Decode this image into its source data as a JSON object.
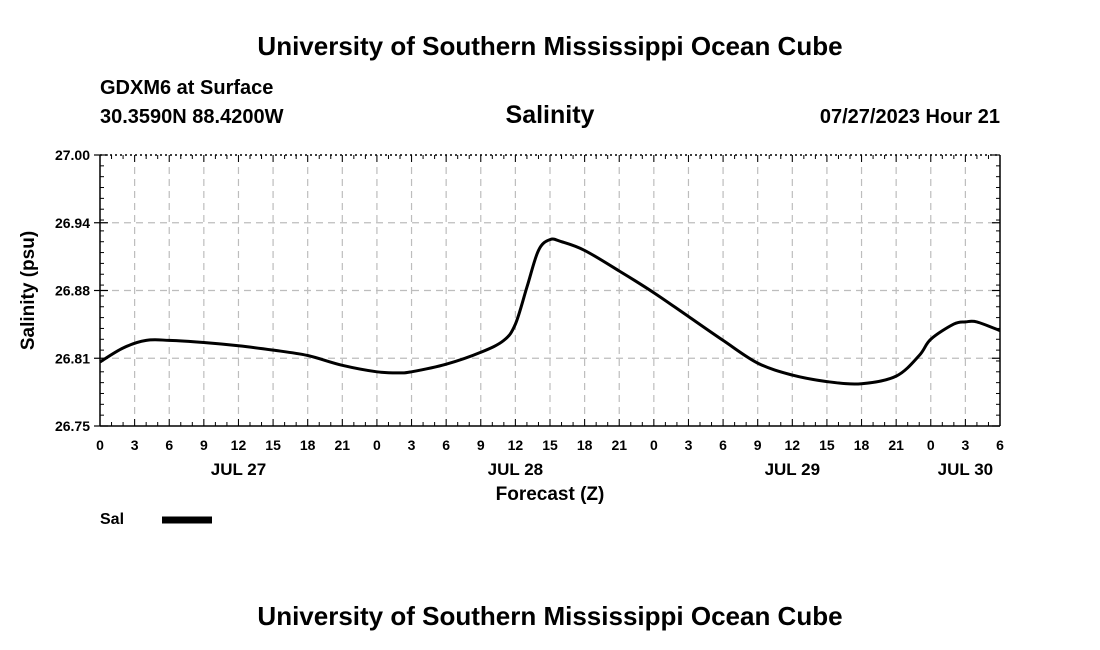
{
  "header": {
    "title": "University of Southern Mississippi Ocean Cube",
    "station": "GDXM6 at Surface",
    "coords": "30.3590N  88.4200W",
    "datetime": "07/27/2023 Hour 21"
  },
  "footer": {
    "title": "University of Southern Mississippi Ocean Cube"
  },
  "chart_data": {
    "type": "line",
    "title": "Salinity",
    "xlabel": "Forecast (Z)",
    "ylabel": "Salinity (psu)",
    "ylim": [
      26.75,
      27.0
    ],
    "yticks": [
      "26.75",
      "26.81",
      "26.88",
      "26.94",
      "27.00"
    ],
    "xlim_hours": [
      0,
      78
    ],
    "xtick_labels": [
      "0",
      "3",
      "6",
      "9",
      "12",
      "15",
      "18",
      "21",
      "0",
      "3",
      "6",
      "9",
      "12",
      "15",
      "18",
      "21",
      "0",
      "3",
      "6",
      "9",
      "12",
      "15",
      "18",
      "21",
      "0",
      "3",
      "6"
    ],
    "day_labels": [
      {
        "label": "JUL 27",
        "hour": 12
      },
      {
        "label": "JUL 28",
        "hour": 36
      },
      {
        "label": "JUL 29",
        "hour": 60
      },
      {
        "label": "JUL 30",
        "hour": 75
      }
    ],
    "grid": true,
    "legend": {
      "position": "bottom-left",
      "entries": [
        "Sal"
      ]
    },
    "series": [
      {
        "name": "Sal",
        "color": "#000000",
        "x": [
          0,
          2,
          4,
          6,
          9,
          12,
          15,
          18,
          21,
          24,
          26,
          27,
          30,
          33,
          35,
          36,
          37,
          38,
          39,
          40,
          42,
          45,
          48,
          51,
          54,
          57,
          60,
          63,
          66,
          69,
          71,
          72,
          74,
          75,
          76,
          78
        ],
        "values": [
          26.809,
          26.822,
          26.829,
          26.829,
          26.827,
          26.824,
          26.82,
          26.815,
          26.806,
          26.8,
          26.799,
          26.8,
          26.807,
          26.818,
          26.829,
          26.844,
          26.878,
          26.912,
          26.922,
          26.92,
          26.912,
          26.893,
          26.873,
          26.851,
          26.829,
          26.808,
          26.797,
          26.791,
          26.789,
          26.796,
          26.815,
          26.83,
          26.844,
          26.846,
          26.846,
          26.838
        ]
      }
    ]
  }
}
